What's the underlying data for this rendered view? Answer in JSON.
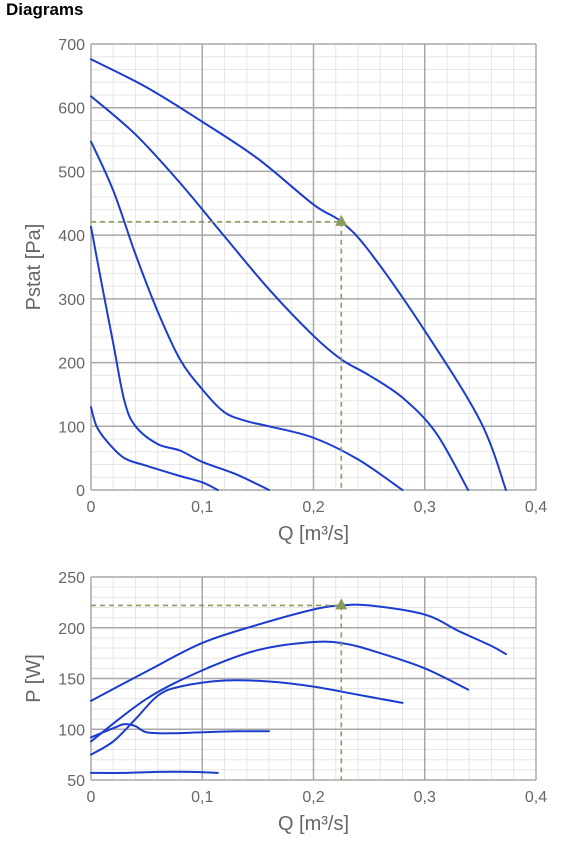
{
  "page": {
    "section_title": "Diagrams"
  },
  "colors": {
    "curve": "#1a3ccf",
    "marker": "#8c9a5b",
    "major_grid": "#a8a8a8",
    "minor_grid": "#e6e6e6",
    "text": "#666666"
  },
  "chart_data": [
    {
      "type": "line",
      "title": "",
      "xlabel": "Q [m³/s]",
      "ylabel": "Pstat [Pa]",
      "xlim": [
        0,
        0.4
      ],
      "ylim": [
        0,
        700
      ],
      "x_ticks": [
        "0",
        "0,1",
        "0,2",
        "0,3",
        "0,4"
      ],
      "y_ticks": [
        "0",
        "100",
        "200",
        "300",
        "400",
        "500",
        "600",
        "700"
      ],
      "grid": true,
      "legend": "none",
      "series": [
        {
          "values": [
            [
              0,
              676
            ],
            [
              0.05,
              632
            ],
            [
              0.1,
              578
            ],
            [
              0.15,
              520
            ],
            [
              0.2,
              448
            ],
            [
              0.225,
              421
            ],
            [
              0.25,
              375
            ],
            [
              0.3,
              250
            ],
            [
              0.35,
              108
            ],
            [
              0.373,
              0
            ]
          ]
        },
        {
          "values": [
            [
              0,
              618
            ],
            [
              0.04,
              558
            ],
            [
              0.08,
              482
            ],
            [
              0.12,
              398
            ],
            [
              0.16,
              315
            ],
            [
              0.2,
              242
            ],
            [
              0.225,
              205
            ],
            [
              0.25,
              180
            ],
            [
              0.28,
              145
            ],
            [
              0.31,
              90
            ],
            [
              0.339,
              0
            ]
          ]
        },
        {
          "values": [
            [
              0,
              547
            ],
            [
              0.02,
              470
            ],
            [
              0.04,
              370
            ],
            [
              0.06,
              280
            ],
            [
              0.08,
              205
            ],
            [
              0.1,
              158
            ],
            [
              0.12,
              122
            ],
            [
              0.14,
              108
            ],
            [
              0.16,
              100
            ],
            [
              0.2,
              82
            ],
            [
              0.24,
              48
            ],
            [
              0.28,
              0
            ]
          ]
        },
        {
          "values": [
            [
              0,
              413
            ],
            [
              0.01,
              320
            ],
            [
              0.02,
              230
            ],
            [
              0.03,
              140
            ],
            [
              0.04,
              100
            ],
            [
              0.06,
              72
            ],
            [
              0.08,
              62
            ],
            [
              0.1,
              44
            ],
            [
              0.13,
              25
            ],
            [
              0.16,
              0
            ]
          ]
        },
        {
          "values": [
            [
              0,
              130
            ],
            [
              0.005,
              100
            ],
            [
              0.015,
              75
            ],
            [
              0.03,
              50
            ],
            [
              0.05,
              38
            ],
            [
              0.08,
              22
            ],
            [
              0.1,
              12
            ],
            [
              0.114,
              0
            ]
          ]
        }
      ],
      "operating_point": {
        "x": 0.225,
        "y": 421
      }
    },
    {
      "type": "line",
      "title": "",
      "xlabel": "Q [m³/s]",
      "ylabel": "P [W]",
      "xlim": [
        0,
        0.4
      ],
      "ylim": [
        50,
        250
      ],
      "x_ticks": [
        "0",
        "0,1",
        "0,2",
        "0,3",
        "0,4"
      ],
      "y_ticks": [
        "50",
        "100",
        "150",
        "200",
        "250"
      ],
      "grid": true,
      "legend": "none",
      "series": [
        {
          "values": [
            [
              0,
              128
            ],
            [
              0.05,
              157
            ],
            [
              0.1,
              185
            ],
            [
              0.15,
              203
            ],
            [
              0.2,
              218
            ],
            [
              0.225,
              222
            ],
            [
              0.25,
              222
            ],
            [
              0.3,
              213
            ],
            [
              0.33,
              197
            ],
            [
              0.36,
              182
            ],
            [
              0.373,
              174
            ]
          ]
        },
        {
          "values": [
            [
              0,
              88
            ],
            [
              0.05,
              130
            ],
            [
              0.1,
              158
            ],
            [
              0.15,
              178
            ],
            [
              0.2,
              186
            ],
            [
              0.23,
              184
            ],
            [
              0.26,
              175
            ],
            [
              0.3,
              160
            ],
            [
              0.339,
              139
            ]
          ]
        },
        {
          "values": [
            [
              0,
              75
            ],
            [
              0.02,
              88
            ],
            [
              0.04,
              110
            ],
            [
              0.06,
              133
            ],
            [
              0.08,
              142
            ],
            [
              0.12,
              148
            ],
            [
              0.16,
              147
            ],
            [
              0.2,
              142
            ],
            [
              0.24,
              134
            ],
            [
              0.28,
              126
            ]
          ]
        },
        {
          "values": [
            [
              0,
              92
            ],
            [
              0.02,
              101
            ],
            [
              0.03,
              105
            ],
            [
              0.04,
              103
            ],
            [
              0.05,
              97
            ],
            [
              0.07,
              96
            ],
            [
              0.1,
              97
            ],
            [
              0.13,
              98
            ],
            [
              0.16,
              98
            ]
          ]
        },
        {
          "values": [
            [
              0,
              57
            ],
            [
              0.03,
              57
            ],
            [
              0.06,
              58
            ],
            [
              0.09,
              58
            ],
            [
              0.114,
              57
            ]
          ]
        }
      ],
      "operating_point": {
        "x": 0.225,
        "y": 222
      }
    }
  ]
}
